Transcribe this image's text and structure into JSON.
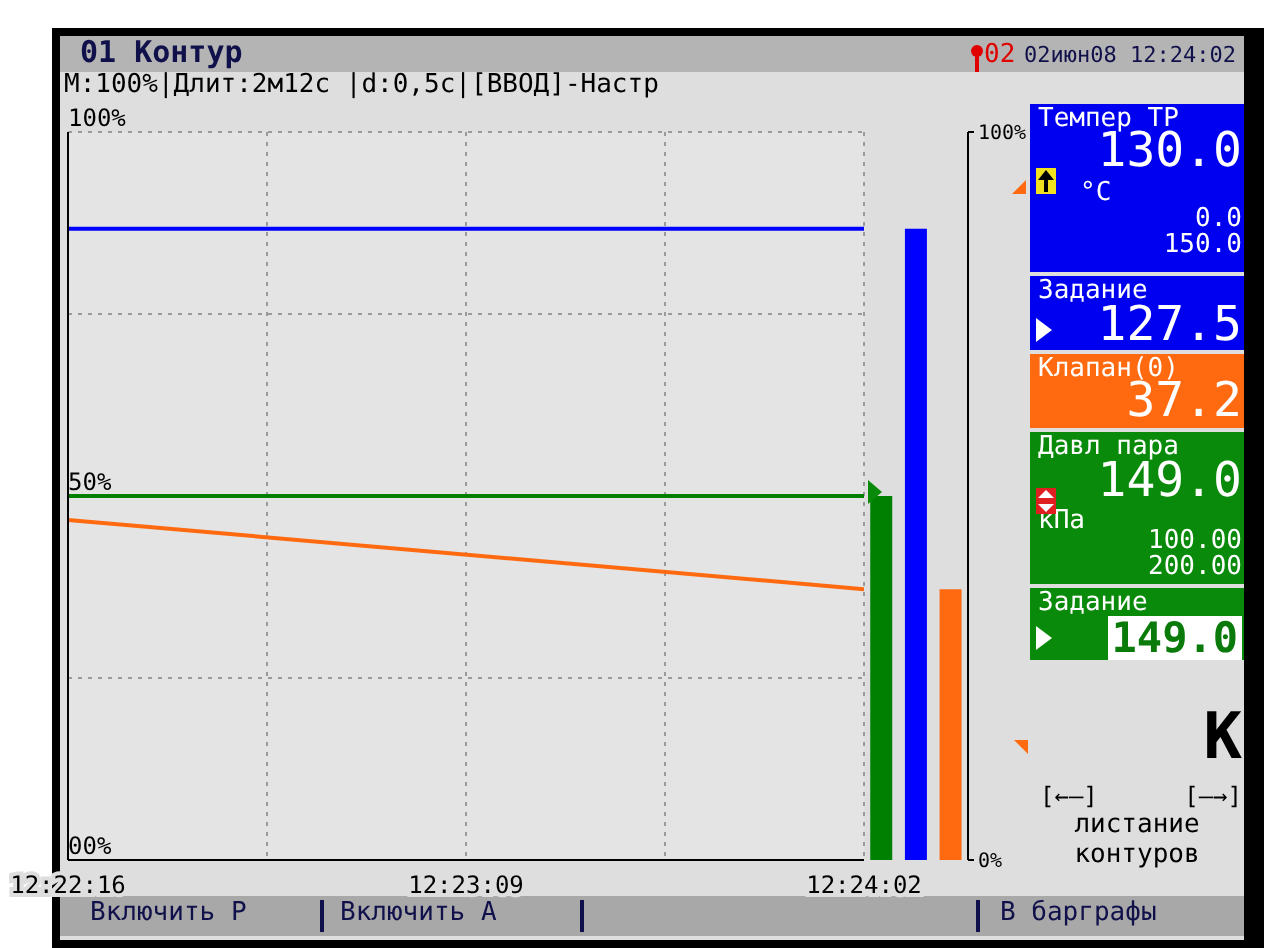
{
  "chart_data": [
    {
      "type": "line",
      "x": [
        12.371111,
        12.400556
      ],
      "series": [
        {
          "color": "#0000ff",
          "values": [
            86.7,
            86.7
          ]
        },
        {
          "color": "#008000",
          "values": [
            50,
            50
          ]
        },
        {
          "color": "#ff6a10",
          "values": [
            46.7,
            37.2
          ]
        }
      ],
      "xlim": [
        12.371111,
        12.400556
      ],
      "xticks": [
        {
          "value": 12.371111,
          "label": "12:22:16"
        },
        {
          "value": 12.378472,
          "label": null
        },
        {
          "value": 12.385833,
          "label": "12:23:09"
        },
        {
          "value": 12.393194,
          "label": null
        },
        {
          "value": 12.400556,
          "label": "12:24:02"
        }
      ],
      "ylim": [
        0,
        100
      ],
      "yticks": [
        {
          "value": 0,
          "label": "00%"
        },
        {
          "value": 25,
          "label": null
        },
        {
          "value": 50,
          "label": "50%"
        },
        {
          "value": 75,
          "label": null
        },
        {
          "value": 100,
          "label": "100%"
        }
      ],
      "grid": true
    },
    {
      "type": "bar",
      "categories": [
        null,
        null,
        null
      ],
      "values": [
        50,
        86.7,
        37.2
      ],
      "colors": [
        "#008000",
        "#0000ff",
        "#ff6a10"
      ],
      "ylim": [
        0,
        100
      ],
      "yticks": [
        {
          "value": 0,
          "label": "0%"
        },
        {
          "value": 100,
          "label": "100%"
        }
      ]
    },
    {
      "type": "other",
      "annotations": [
        "01 Контур",
        "02",
        "02июн08 12:24:02",
        "М:100%|Длит:2м12с |d:0,5с|[ВВОД]-Настр",
        "Темпер ТР",
        "130.0",
        "°C",
        "0.0",
        "150.0",
        "Задание",
        "127.5",
        "Клапан(0)",
        "37.2",
        "Давл пара",
        "149.0",
        "кПа",
        "100.00",
        "200.00",
        "Задание",
        "149.0",
        "К",
        "[←–]",
        "[–→]",
        "листание",
        "контуров",
        "Включить Р",
        "Включить А",
        "В барграфы"
      ]
    }
  ]
}
